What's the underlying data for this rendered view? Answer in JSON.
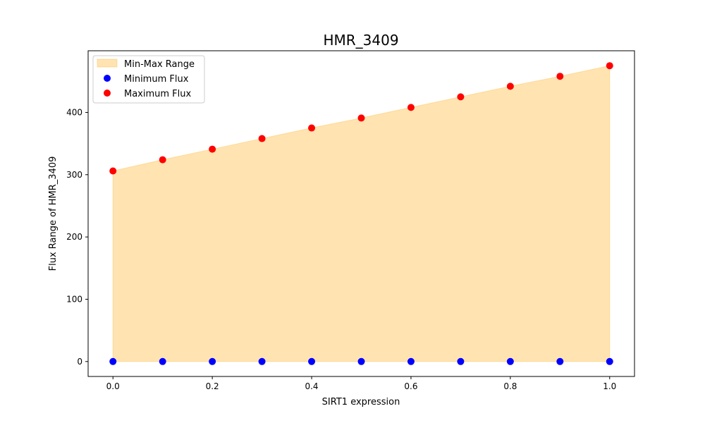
{
  "chart_data": {
    "type": "scatter",
    "title": "HMR_3409",
    "xlabel": "SIRT1 expression",
    "ylabel": "Flux Range of HMR_3409",
    "xlim": [
      -0.05,
      1.05
    ],
    "ylim": [
      -24,
      499
    ],
    "x_ticks": [
      0.0,
      0.2,
      0.4,
      0.6,
      0.8,
      1.0
    ],
    "x_tick_labels": [
      "0.0",
      "0.2",
      "0.4",
      "0.6",
      "0.8",
      "1.0"
    ],
    "y_ticks": [
      0,
      100,
      200,
      300,
      400
    ],
    "y_tick_labels": [
      "0",
      "100",
      "200",
      "300",
      "400"
    ],
    "grid": false,
    "legend_position": "top-left",
    "x": [
      0.0,
      0.1,
      0.2,
      0.3,
      0.4,
      0.5,
      0.6,
      0.7,
      0.8,
      0.9,
      1.0
    ],
    "series": [
      {
        "name": "Minimum Flux",
        "kind": "scatter",
        "color": "#0000ff",
        "values": [
          0,
          0,
          0,
          0,
          0,
          0,
          0,
          0,
          0,
          0,
          0
        ]
      },
      {
        "name": "Maximum Flux",
        "kind": "scatter",
        "color": "#ff0000",
        "values": [
          306,
          324,
          341,
          358,
          375,
          391,
          408,
          425,
          442,
          458,
          475
        ]
      }
    ],
    "fill": {
      "name": "Min-Max Range",
      "color": "#ffa500",
      "opacity": 0.3
    }
  }
}
